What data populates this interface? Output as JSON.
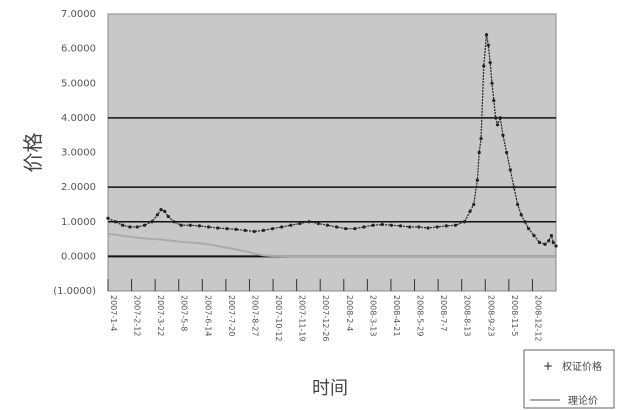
{
  "chart_data": {
    "type": "line",
    "title": "",
    "xlabel": "时间",
    "ylabel": "价格",
    "y_ticks": [
      "7.0000",
      "6.0000",
      "5.0000",
      "4.0000",
      "3.0000",
      "2.0000",
      "1.0000",
      "0.0000",
      "(1.0000)"
    ],
    "ylim": [
      -1,
      7
    ],
    "x_ticks": [
      "2007-1-4",
      "2007-2-12",
      "2007-3-22",
      "2007-5-8",
      "2007-6-14",
      "2007-7-20",
      "2007-8-27",
      "2007-10-12",
      "2007-11-19",
      "2007-12-26",
      "2008-2-4",
      "2008-3-13",
      "2008-4-21",
      "2008-5-29",
      "2008-7-7",
      "2008-8-13",
      "2008-9-23",
      "2008-11-5",
      "2008-12-12"
    ],
    "grid": true,
    "legend_position": "bottom-right",
    "series": [
      {
        "name": "权证价格",
        "color": "#222222",
        "style": "points",
        "points": [
          [
            0,
            1.1
          ],
          [
            0.4,
            1.0
          ],
          [
            0.8,
            0.9
          ],
          [
            1.2,
            0.85
          ],
          [
            1.6,
            0.85
          ],
          [
            2.0,
            0.9
          ],
          [
            2.4,
            1.0
          ],
          [
            2.7,
            1.2
          ],
          [
            2.9,
            1.35
          ],
          [
            3.1,
            1.3
          ],
          [
            3.3,
            1.15
          ],
          [
            3.6,
            1.0
          ],
          [
            4.0,
            0.9
          ],
          [
            4.5,
            0.9
          ],
          [
            5.0,
            0.88
          ],
          [
            5.5,
            0.85
          ],
          [
            6.0,
            0.82
          ],
          [
            6.5,
            0.8
          ],
          [
            7.0,
            0.78
          ],
          [
            7.5,
            0.75
          ],
          [
            8.0,
            0.72
          ],
          [
            8.5,
            0.75
          ],
          [
            9.0,
            0.8
          ],
          [
            9.5,
            0.85
          ],
          [
            10.0,
            0.9
          ],
          [
            10.5,
            0.95
          ],
          [
            11.0,
            1.0
          ],
          [
            11.5,
            0.95
          ],
          [
            12.0,
            0.9
          ],
          [
            12.5,
            0.85
          ],
          [
            13.0,
            0.8
          ],
          [
            13.5,
            0.8
          ],
          [
            14.0,
            0.85
          ],
          [
            14.5,
            0.9
          ],
          [
            15.0,
            0.92
          ],
          [
            15.5,
            0.9
          ],
          [
            16.0,
            0.88
          ],
          [
            16.5,
            0.85
          ],
          [
            17.0,
            0.85
          ],
          [
            17.5,
            0.82
          ],
          [
            18.0,
            0.85
          ],
          [
            18.5,
            0.88
          ],
          [
            19.0,
            0.9
          ],
          [
            19.5,
            1.0
          ],
          [
            19.8,
            1.3
          ],
          [
            20.0,
            1.5
          ],
          [
            20.2,
            2.2
          ],
          [
            20.3,
            3.0
          ],
          [
            20.4,
            3.4
          ],
          [
            20.55,
            5.5
          ],
          [
            20.7,
            6.4
          ],
          [
            20.8,
            6.1
          ],
          [
            20.9,
            5.6
          ],
          [
            21.0,
            5.0
          ],
          [
            21.1,
            4.5
          ],
          [
            21.2,
            4.0
          ],
          [
            21.3,
            3.8
          ],
          [
            21.45,
            4.0
          ],
          [
            21.6,
            3.5
          ],
          [
            21.8,
            3.0
          ],
          [
            22.0,
            2.5
          ],
          [
            22.2,
            2.0
          ],
          [
            22.4,
            1.5
          ],
          [
            22.6,
            1.2
          ],
          [
            22.8,
            1.0
          ],
          [
            23.0,
            0.8
          ],
          [
            23.3,
            0.6
          ],
          [
            23.6,
            0.4
          ],
          [
            23.9,
            0.35
          ],
          [
            24.1,
            0.45
          ],
          [
            24.25,
            0.6
          ],
          [
            24.35,
            0.4
          ],
          [
            24.5,
            0.3
          ]
        ]
      },
      {
        "name": "理论价",
        "color": "#aaaaaa",
        "style": "line",
        "points": [
          [
            0,
            0.65
          ],
          [
            0.5,
            0.62
          ],
          [
            1.0,
            0.58
          ],
          [
            1.5,
            0.55
          ],
          [
            2.0,
            0.52
          ],
          [
            2.5,
            0.5
          ],
          [
            3.0,
            0.48
          ],
          [
            3.5,
            0.45
          ],
          [
            4.0,
            0.42
          ],
          [
            4.5,
            0.4
          ],
          [
            5.0,
            0.38
          ],
          [
            5.5,
            0.35
          ],
          [
            6.0,
            0.3
          ],
          [
            6.5,
            0.25
          ],
          [
            7.0,
            0.2
          ],
          [
            7.5,
            0.15
          ],
          [
            8.0,
            0.08
          ],
          [
            8.5,
            0.03
          ],
          [
            9.0,
            0.01
          ],
          [
            10.0,
            0.0
          ],
          [
            24.5,
            0.0
          ]
        ]
      }
    ]
  }
}
